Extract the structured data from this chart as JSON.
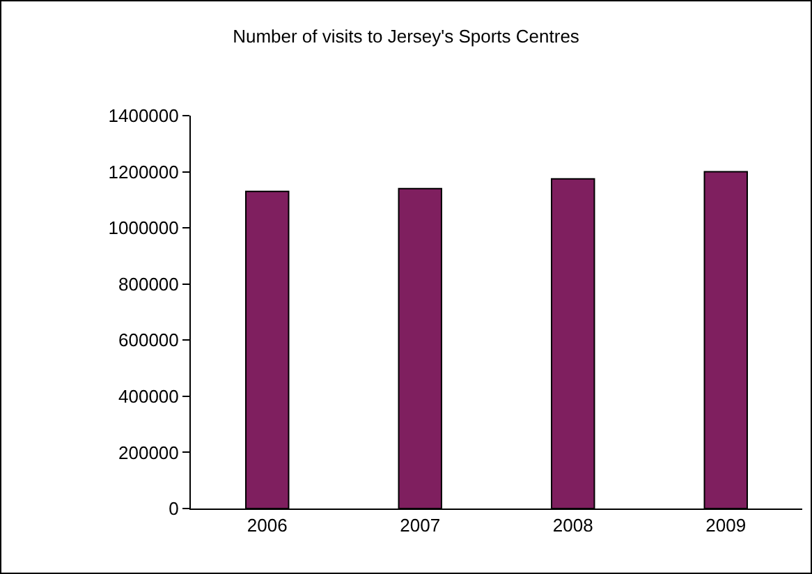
{
  "chart_data": {
    "type": "bar",
    "title": "Number of visits to Jersey's Sports Centres",
    "categories": [
      "2006",
      "2007",
      "2008",
      "2009"
    ],
    "values": [
      1130000,
      1140000,
      1175000,
      1200000
    ],
    "color": "#7f1f5f",
    "ylim": [
      0,
      1400000
    ],
    "yticks": [
      0,
      200000,
      400000,
      600000,
      800000,
      1000000,
      1200000,
      1400000
    ],
    "grid": false,
    "legend": false
  }
}
